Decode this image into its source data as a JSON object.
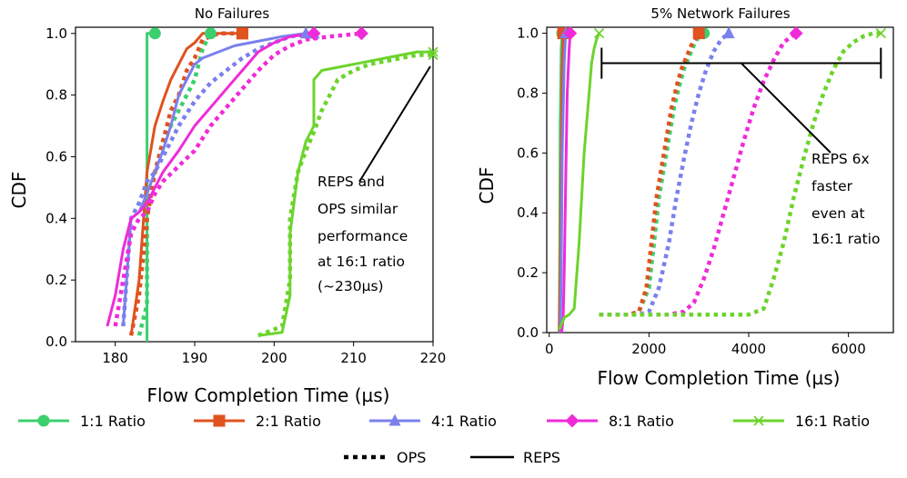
{
  "chart_data": [
    {
      "type": "line",
      "title": "No Failures",
      "xlabel": "Flow Completion Time (µs)",
      "ylabel": "CDF",
      "xlim": [
        175,
        220
      ],
      "ylim": [
        0,
        1.02
      ],
      "xticks": [
        180,
        190,
        200,
        210,
        220
      ],
      "yticks": [
        0.0,
        0.2,
        0.4,
        0.6,
        0.8,
        1.0
      ],
      "series": [
        {
          "key": "r1",
          "name": "1:1 Ratio",
          "variant": "REPS",
          "x": [
            184,
            184,
            184,
            184,
            184,
            185
          ],
          "y": [
            0.0,
            0.5,
            0.9,
            0.99,
            1.0,
            1.0
          ]
        },
        {
          "key": "r1",
          "name": "1:1 Ratio",
          "variant": "OPS",
          "x": [
            183,
            184,
            184,
            185,
            186,
            188,
            190,
            191,
            192
          ],
          "y": [
            0.02,
            0.12,
            0.45,
            0.55,
            0.65,
            0.75,
            0.85,
            0.95,
            1.0
          ]
        },
        {
          "key": "r2",
          "name": "2:1 Ratio",
          "variant": "REPS",
          "x": [
            182,
            183,
            184,
            185,
            186,
            187,
            188,
            189,
            190,
            191,
            192,
            193,
            194,
            196
          ],
          "y": [
            0.02,
            0.2,
            0.55,
            0.7,
            0.78,
            0.85,
            0.9,
            0.95,
            0.97,
            1.0,
            1.0,
            1.0,
            1.0,
            1.0
          ]
        },
        {
          "key": "r2",
          "name": "2:1 Ratio",
          "variant": "OPS",
          "x": [
            182,
            183,
            184,
            185,
            186,
            187,
            188,
            189,
            190,
            191,
            193,
            196
          ],
          "y": [
            0.02,
            0.15,
            0.4,
            0.55,
            0.65,
            0.75,
            0.8,
            0.88,
            0.92,
            0.98,
            1.0,
            1.0
          ]
        },
        {
          "key": "r4",
          "name": "4:1 Ratio",
          "variant": "REPS",
          "x": [
            181,
            182,
            183,
            184,
            185,
            186,
            187,
            188,
            189,
            190,
            191,
            193,
            195,
            197,
            199,
            201,
            204
          ],
          "y": [
            0.05,
            0.4,
            0.42,
            0.48,
            0.55,
            0.62,
            0.7,
            0.8,
            0.85,
            0.9,
            0.92,
            0.94,
            0.96,
            0.97,
            0.98,
            0.99,
            1.0
          ]
        },
        {
          "key": "r4",
          "name": "4:1 Ratio",
          "variant": "OPS",
          "x": [
            181,
            182,
            183,
            184,
            185,
            186,
            187,
            188,
            190,
            192,
            194,
            196,
            198,
            200,
            202,
            205
          ],
          "y": [
            0.05,
            0.4,
            0.45,
            0.52,
            0.55,
            0.6,
            0.65,
            0.7,
            0.78,
            0.84,
            0.88,
            0.92,
            0.95,
            0.97,
            0.99,
            1.0
          ]
        },
        {
          "key": "r8",
          "name": "8:1 Ratio",
          "variant": "REPS",
          "x": [
            179,
            180,
            181,
            182,
            183,
            184,
            185,
            186,
            188,
            190,
            192,
            194,
            196,
            198,
            200,
            202,
            205
          ],
          "y": [
            0.05,
            0.15,
            0.3,
            0.4,
            0.42,
            0.45,
            0.5,
            0.55,
            0.62,
            0.7,
            0.76,
            0.82,
            0.88,
            0.94,
            0.97,
            0.99,
            1.0
          ]
        },
        {
          "key": "r8",
          "name": "8:1 Ratio",
          "variant": "OPS",
          "x": [
            180,
            181,
            182,
            183,
            184,
            185,
            186,
            188,
            190,
            192,
            194,
            196,
            198,
            200,
            202,
            204,
            207,
            211
          ],
          "y": [
            0.05,
            0.2,
            0.35,
            0.4,
            0.42,
            0.48,
            0.52,
            0.57,
            0.62,
            0.7,
            0.76,
            0.82,
            0.88,
            0.93,
            0.96,
            0.98,
            0.99,
            1.0
          ]
        },
        {
          "key": "r16",
          "name": "16:1 Ratio",
          "variant": "REPS",
          "x": [
            198,
            201,
            202,
            202,
            203,
            204,
            205,
            205,
            206,
            208,
            210,
            212,
            214,
            216,
            218,
            220
          ],
          "y": [
            0.02,
            0.03,
            0.15,
            0.35,
            0.55,
            0.65,
            0.7,
            0.85,
            0.88,
            0.89,
            0.9,
            0.91,
            0.92,
            0.93,
            0.94,
            0.94
          ]
        },
        {
          "key": "r16",
          "name": "16:1 Ratio",
          "variant": "OPS",
          "x": [
            198,
            201,
            202,
            202,
            203,
            204,
            205,
            206,
            207,
            208,
            210,
            212,
            214,
            216,
            218,
            220
          ],
          "y": [
            0.02,
            0.05,
            0.2,
            0.4,
            0.55,
            0.62,
            0.68,
            0.75,
            0.8,
            0.85,
            0.88,
            0.9,
            0.91,
            0.92,
            0.93,
            0.93
          ]
        }
      ],
      "annotations": [
        {
          "text": "REPS and OPS similar performance at 16:1 ratio (~230µs)"
        }
      ]
    },
    {
      "type": "line",
      "title": "5% Network Failures",
      "xlabel": "Flow Completion Time (µs)",
      "ylabel": "CDF",
      "xlim": [
        -50,
        6900
      ],
      "ylim": [
        0,
        1.02
      ],
      "xticks": [
        0,
        2000,
        4000,
        6000
      ],
      "yticks": [
        0.0,
        0.2,
        0.4,
        0.6,
        0.8,
        1.0
      ],
      "series": [
        {
          "key": "r1",
          "name": "1:1 Ratio",
          "variant": "REPS",
          "x": [
            200,
            210,
            220,
            240,
            260
          ],
          "y": [
            0.0,
            0.3,
            0.7,
            0.95,
            1.0
          ]
        },
        {
          "key": "r1",
          "name": "1:1 Ratio",
          "variant": "OPS",
          "x": [
            1000,
            1600,
            1800,
            2000,
            2100,
            2200,
            2300,
            2400,
            2500,
            2600,
            2700,
            2800,
            2900,
            3000,
            3100
          ],
          "y": [
            0.06,
            0.06,
            0.07,
            0.15,
            0.3,
            0.45,
            0.55,
            0.65,
            0.75,
            0.82,
            0.88,
            0.92,
            0.96,
            0.99,
            1.0
          ]
        },
        {
          "key": "r2",
          "name": "2:1 Ratio",
          "variant": "REPS",
          "x": [
            200,
            220,
            240,
            260,
            280
          ],
          "y": [
            0.0,
            0.2,
            0.6,
            0.9,
            1.0
          ]
        },
        {
          "key": "r2",
          "name": "2:1 Ratio",
          "variant": "OPS",
          "x": [
            1000,
            1600,
            1800,
            1950,
            2050,
            2150,
            2250,
            2350,
            2450,
            2550,
            2650,
            2750,
            2850,
            3000
          ],
          "y": [
            0.06,
            0.06,
            0.07,
            0.15,
            0.3,
            0.45,
            0.55,
            0.65,
            0.75,
            0.82,
            0.88,
            0.92,
            0.96,
            1.0
          ]
        },
        {
          "key": "r4",
          "name": "4:1 Ratio",
          "variant": "REPS",
          "x": [
            220,
            240,
            260,
            300,
            330
          ],
          "y": [
            0.0,
            0.2,
            0.6,
            0.9,
            1.0
          ]
        },
        {
          "key": "r4",
          "name": "4:1 Ratio",
          "variant": "OPS",
          "x": [
            1000,
            1800,
            2000,
            2200,
            2400,
            2550,
            2700,
            2850,
            3000,
            3150,
            3300,
            3450,
            3600
          ],
          "y": [
            0.06,
            0.06,
            0.07,
            0.15,
            0.3,
            0.45,
            0.58,
            0.7,
            0.8,
            0.88,
            0.94,
            0.98,
            1.0
          ]
        },
        {
          "key": "r8",
          "name": "8:1 Ratio",
          "variant": "REPS",
          "x": [
            250,
            280,
            300,
            330,
            360,
            400,
            420
          ],
          "y": [
            0.0,
            0.05,
            0.2,
            0.5,
            0.8,
            0.95,
            1.0
          ]
        },
        {
          "key": "r8",
          "name": "8:1 Ratio",
          "variant": "OPS",
          "x": [
            1000,
            2400,
            2700,
            2900,
            3100,
            3300,
            3500,
            3700,
            3900,
            4100,
            4300,
            4500,
            4700,
            4950
          ],
          "y": [
            0.06,
            0.06,
            0.07,
            0.1,
            0.18,
            0.28,
            0.4,
            0.52,
            0.64,
            0.75,
            0.84,
            0.91,
            0.97,
            1.0
          ]
        },
        {
          "key": "r16",
          "name": "16:1 Ratio",
          "variant": "REPS",
          "x": [
            200,
            300,
            400,
            500,
            600,
            700,
            800,
            850,
            900,
            950,
            1000
          ],
          "y": [
            0.01,
            0.05,
            0.06,
            0.08,
            0.3,
            0.6,
            0.8,
            0.9,
            0.95,
            0.98,
            1.0
          ]
        },
        {
          "key": "r16",
          "name": "16:1 Ratio",
          "variant": "OPS",
          "x": [
            1000,
            2000,
            3000,
            4000,
            4300,
            4500,
            4700,
            4900,
            5100,
            5300,
            5500,
            5700,
            5900,
            6100,
            6300,
            6500,
            6650
          ],
          "y": [
            0.06,
            0.06,
            0.06,
            0.06,
            0.08,
            0.18,
            0.3,
            0.45,
            0.58,
            0.7,
            0.8,
            0.88,
            0.94,
            0.97,
            0.99,
            1.0,
            1.0
          ]
        }
      ],
      "bracket": {
        "x0": 1050,
        "x1": 6650,
        "y": 0.9
      },
      "annotations": [
        {
          "text": "REPS 6x faster even at 16:1 ratio"
        }
      ]
    }
  ],
  "legend": {
    "ratios": [
      {
        "key": "r1",
        "label": "1:1 Ratio",
        "marker": "circle"
      },
      {
        "key": "r2",
        "label": "2:1 Ratio",
        "marker": "square"
      },
      {
        "key": "r4",
        "label": "4:1 Ratio",
        "marker": "triangle"
      },
      {
        "key": "r8",
        "label": "8:1 Ratio",
        "marker": "diamond"
      },
      {
        "key": "r16",
        "label": "16:1 Ratio",
        "marker": "x"
      }
    ],
    "styles": [
      {
        "label": "OPS",
        "dash": "dotted"
      },
      {
        "label": "REPS",
        "dash": "solid"
      }
    ]
  },
  "colors": {
    "r1": "#3ccf6e",
    "r2": "#e0521f",
    "r4": "#7b80ec",
    "r8": "#ef2bd9",
    "r16": "#6cd42c",
    "axis": "#000000"
  }
}
